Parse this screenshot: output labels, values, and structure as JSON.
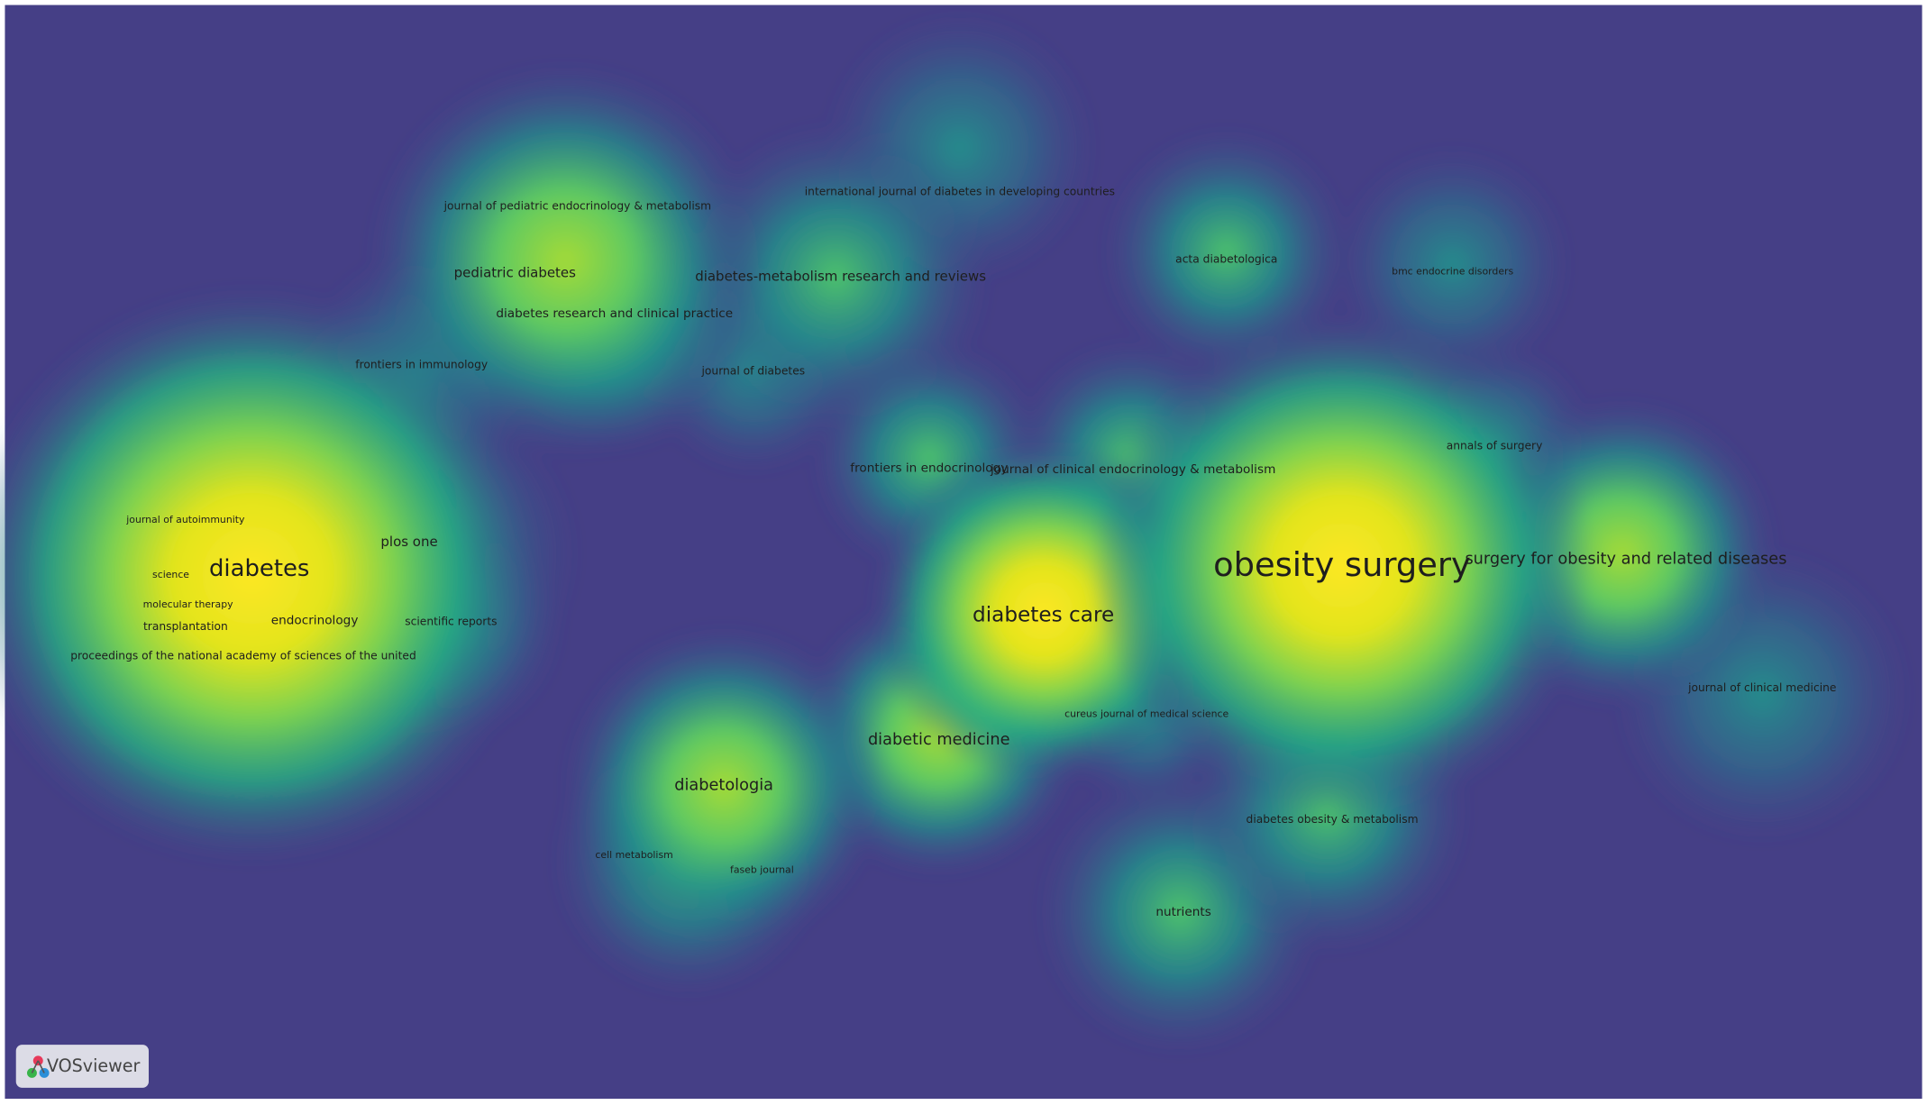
{
  "nodes": [
    {
      "label": "journal of pediatric endocrinology & metabolism"
    },
    {
      "label": "international journal of diabetes in developing countries"
    },
    {
      "label": "pediatric diabetes"
    },
    {
      "label": "diabetes-metabolism research and reviews"
    },
    {
      "label": "acta diabetologica"
    },
    {
      "label": "bmc endocrine disorders"
    },
    {
      "label": "diabetes research and clinical practice"
    },
    {
      "label": "frontiers in immunology"
    },
    {
      "label": "journal of diabetes"
    },
    {
      "label": "annals of surgery"
    },
    {
      "label": "frontiers in endocrinology"
    },
    {
      "label": "journal of clinical endocrinology & metabolism"
    },
    {
      "label": "journal of autoimmunity"
    },
    {
      "label": "plos one"
    },
    {
      "label": "diabetes"
    },
    {
      "label": "obesity surgery"
    },
    {
      "label": "surgery for obesity and related diseases"
    },
    {
      "label": "science"
    },
    {
      "label": "molecular therapy"
    },
    {
      "label": "endocrinology"
    },
    {
      "label": "scientific reports"
    },
    {
      "label": "transplantation"
    },
    {
      "label": "diabetes care"
    },
    {
      "label": "proceedings of the national academy of sciences of the united"
    },
    {
      "label": "journal of clinical medicine"
    },
    {
      "label": "cureus journal of medical science"
    },
    {
      "label": "diabetic medicine"
    },
    {
      "label": "diabetologia"
    },
    {
      "label": "diabetes obesity & metabolism"
    },
    {
      "label": "cell metabolism"
    },
    {
      "label": "faseb journal"
    },
    {
      "label": "nutrients"
    }
  ],
  "logo": "VOSviewer"
}
